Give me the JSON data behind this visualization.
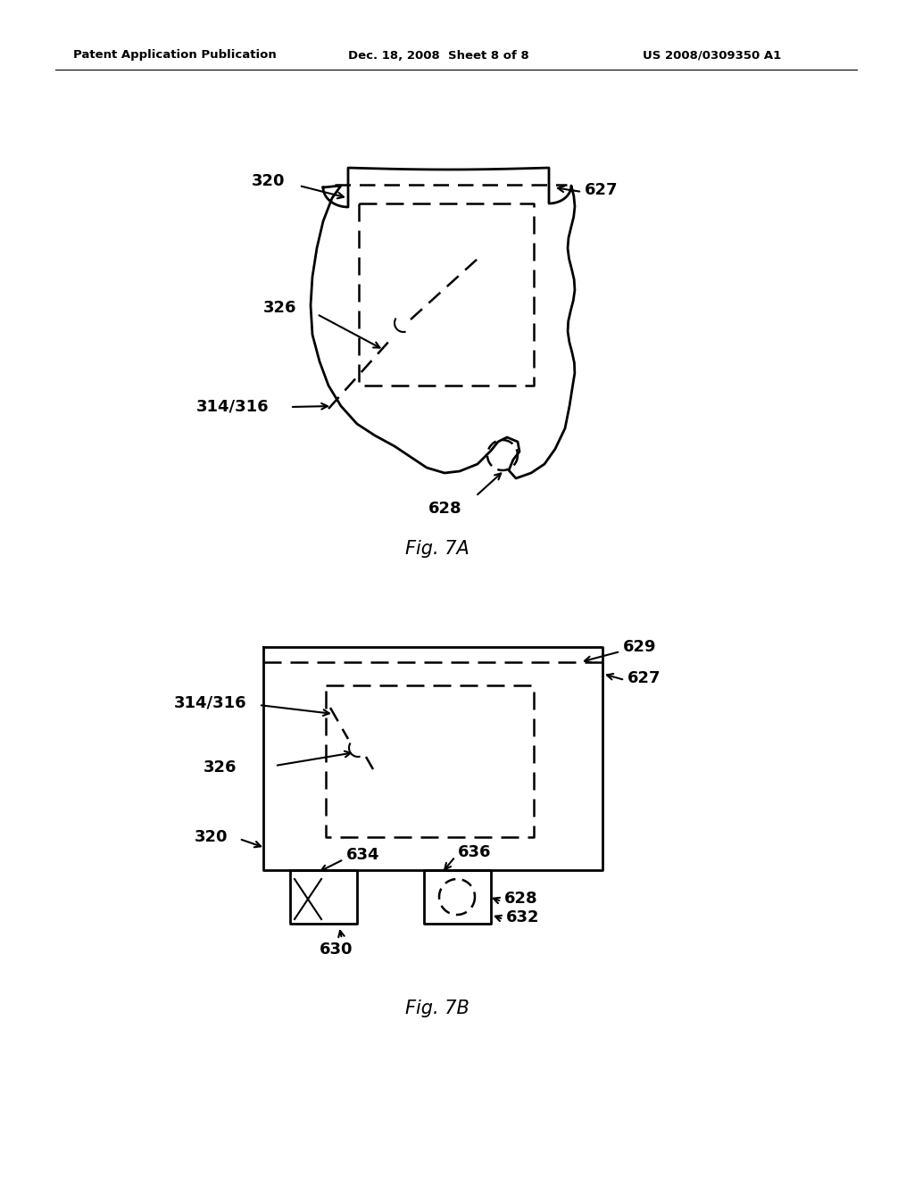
{
  "bg_color": "#ffffff",
  "header_text": "Patent Application Publication",
  "header_date": "Dec. 18, 2008  Sheet 8 of 8",
  "header_patent": "US 2008/0309350 A1",
  "fig7a_caption": "Fig. 7A",
  "fig7b_caption": "Fig. 7B",
  "lw_thick": 2.0,
  "lw_thin": 1.5,
  "lw_dash": 1.8,
  "font_label": 13,
  "font_caption": 15,
  "font_header": 9.5
}
